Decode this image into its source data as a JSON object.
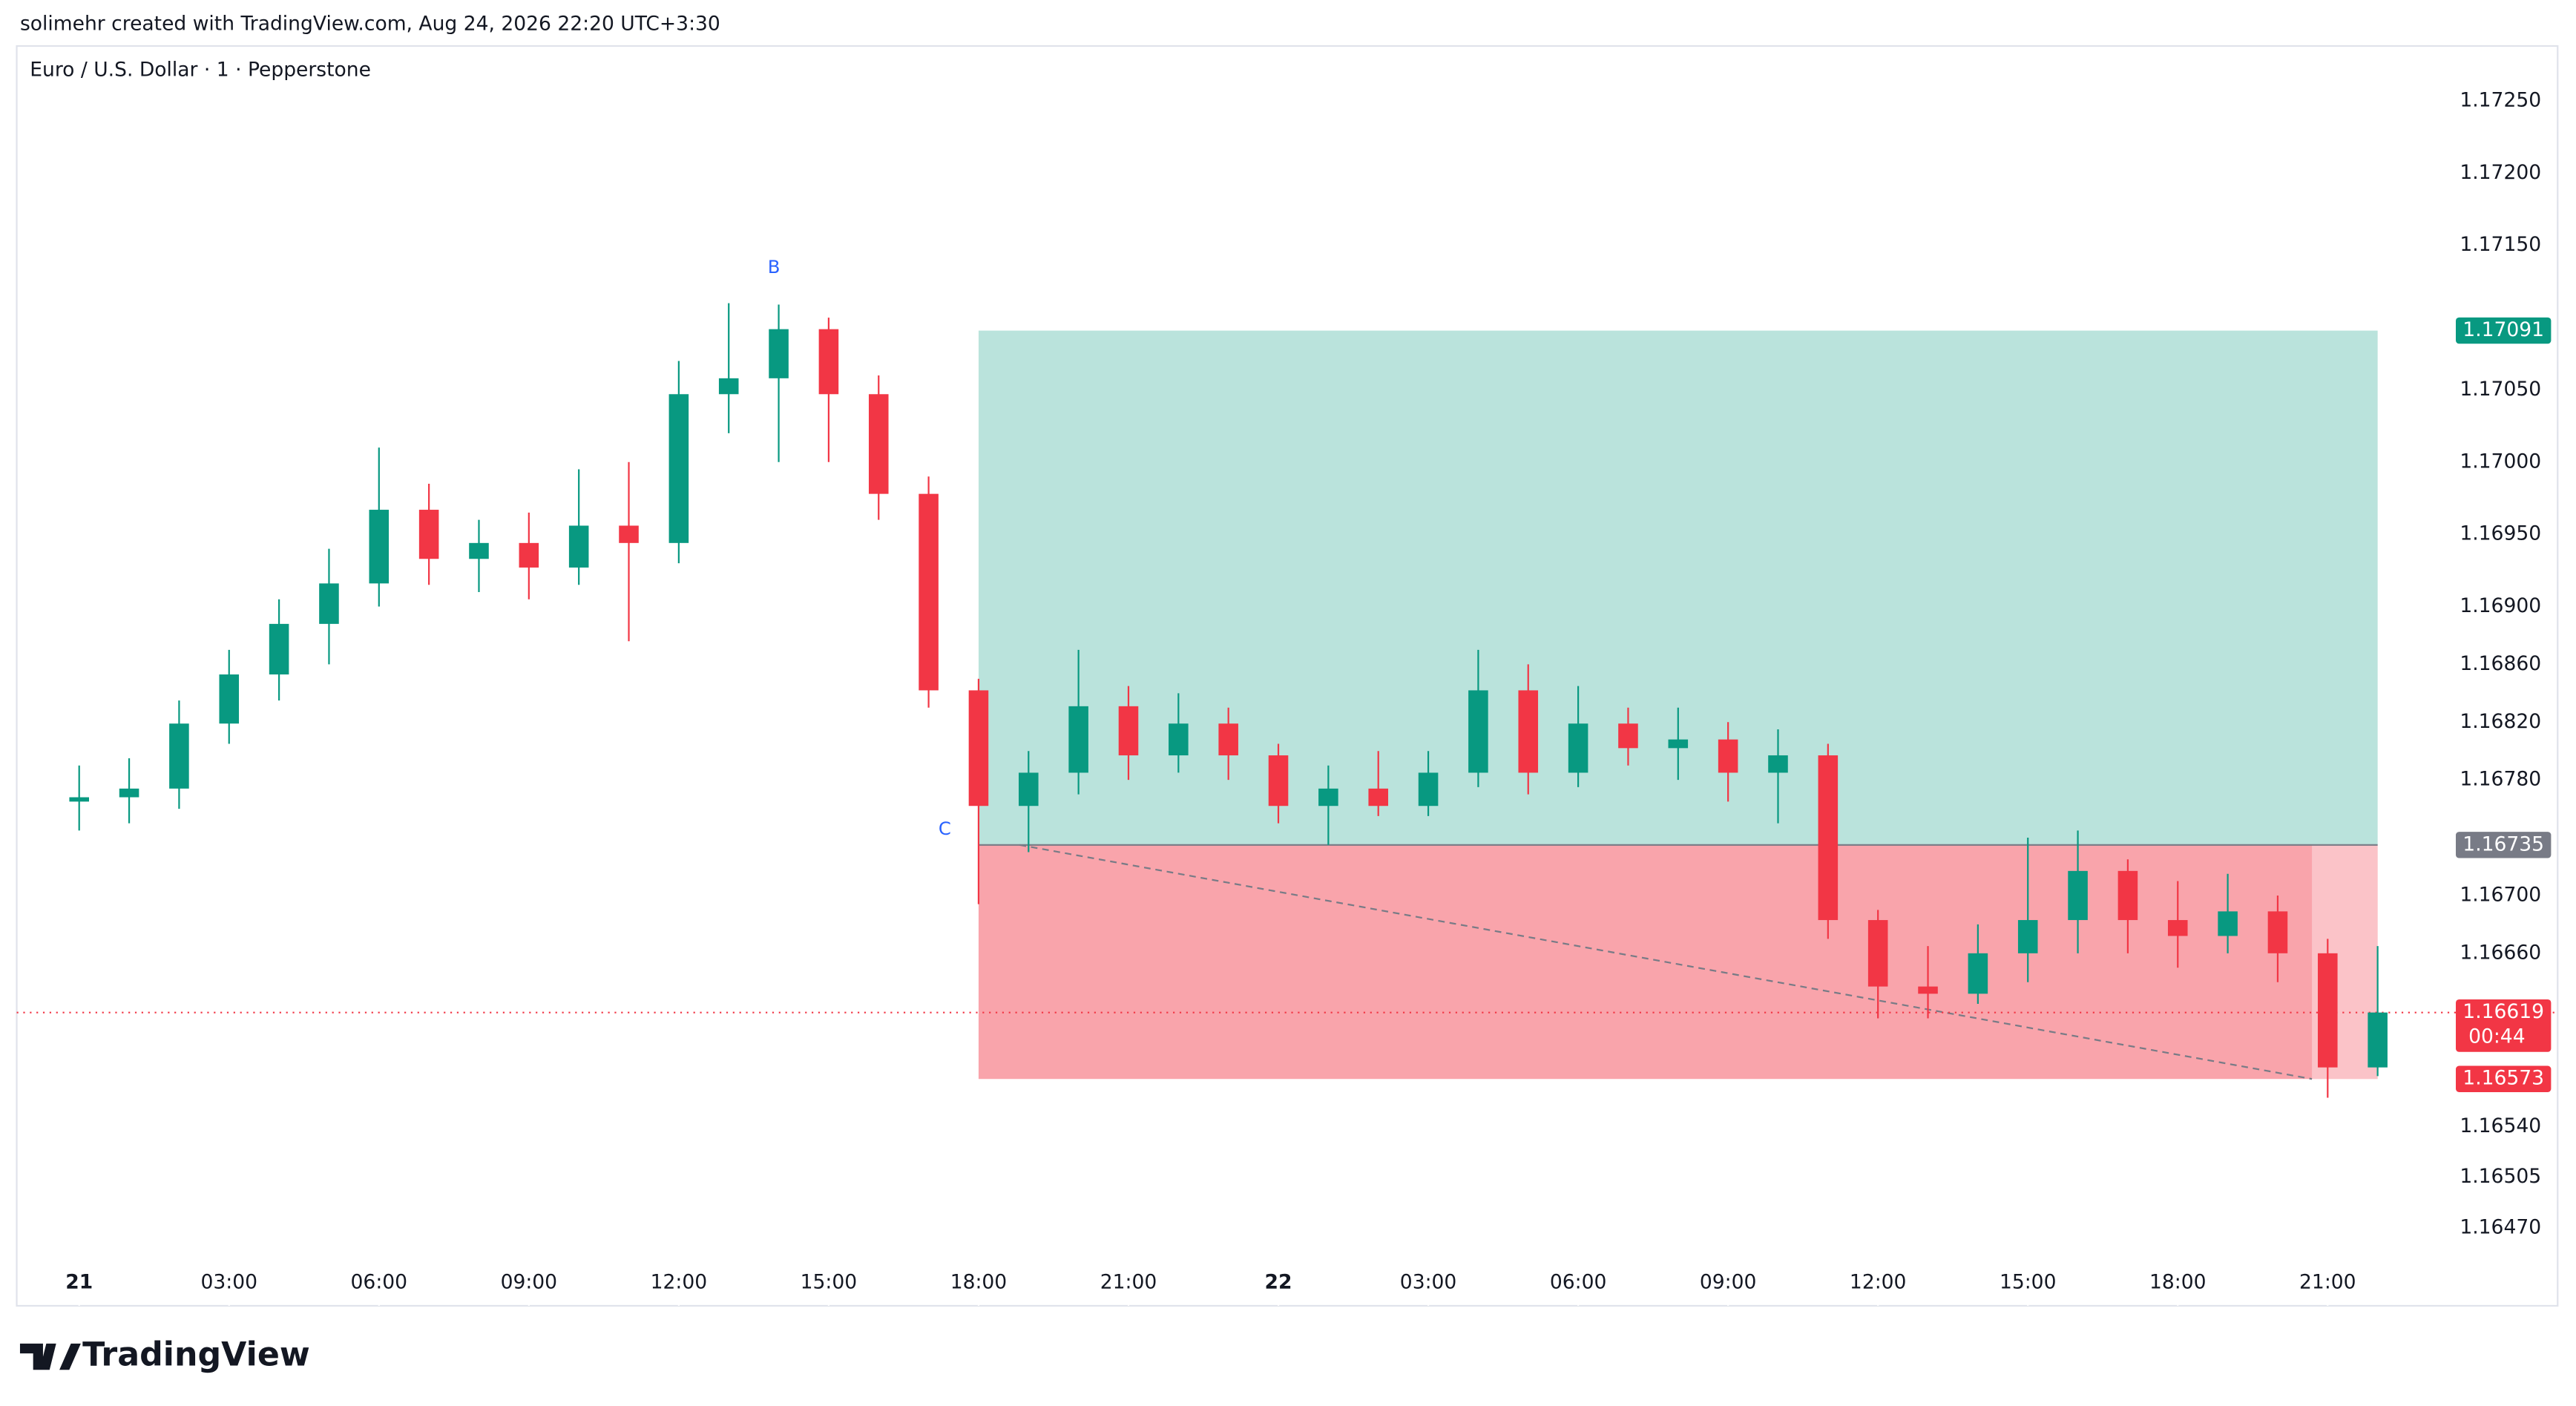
{
  "header": "solimehr created with TradingView.com, Aug 24, 2026 22:20 UTC+3:30",
  "brand": "TradingView",
  "chart_data": {
    "type": "candlestick",
    "title": "Euro / U.S. Dollar · 1 · Pepperstone",
    "x": [
      0,
      1,
      2,
      3,
      4,
      5,
      6,
      7,
      8,
      9,
      10,
      11,
      12,
      13,
      14,
      15,
      16,
      17,
      18,
      19,
      20,
      21,
      22,
      23,
      24,
      25,
      26,
      27,
      28,
      29,
      30,
      31,
      32,
      33,
      34,
      35,
      36,
      37,
      38,
      39,
      40,
      41,
      42,
      43,
      44,
      45,
      46
    ],
    "open": [
      1.16765,
      1.16768,
      1.16774,
      1.16819,
      1.16853,
      1.16888,
      1.16916,
      1.16967,
      1.16933,
      1.16944,
      1.16927,
      1.16956,
      1.16944,
      1.17047,
      1.17058,
      1.17092,
      1.17047,
      1.16978,
      1.16842,
      1.16762,
      1.16785,
      1.16831,
      1.16797,
      1.16819,
      1.16797,
      1.16762,
      1.16774,
      1.16762,
      1.16785,
      1.16842,
      1.16785,
      1.16819,
      1.16802,
      1.16808,
      1.16785,
      1.16797,
      1.16683,
      1.16637,
      1.16632,
      1.1666,
      1.16683,
      1.16717,
      1.16683,
      1.16672,
      1.16689,
      1.1666,
      1.16581
    ],
    "high": [
      1.1679,
      1.16795,
      1.16835,
      1.1687,
      1.16905,
      1.1694,
      1.1701,
      1.16985,
      1.1696,
      1.16965,
      1.16995,
      1.17,
      1.1707,
      1.1711,
      1.17109,
      1.171,
      1.1706,
      1.1699,
      1.1685,
      1.168,
      1.1687,
      1.16845,
      1.1684,
      1.1683,
      1.16805,
      1.1679,
      1.168,
      1.168,
      1.1687,
      1.1686,
      1.16845,
      1.1683,
      1.1683,
      1.1682,
      1.16815,
      1.16805,
      1.1669,
      1.16665,
      1.1668,
      1.1674,
      1.16745,
      1.16725,
      1.1671,
      1.16715,
      1.167,
      1.1667,
      1.16665
    ],
    "low": [
      1.16745,
      1.1675,
      1.1676,
      1.16805,
      1.16835,
      1.1686,
      1.169,
      1.16915,
      1.1691,
      1.16905,
      1.16915,
      1.16876,
      1.1693,
      1.1702,
      1.17,
      1.17,
      1.1696,
      1.1683,
      1.16694,
      1.1673,
      1.1677,
      1.1678,
      1.16785,
      1.1678,
      1.1675,
      1.16735,
      1.16755,
      1.16755,
      1.16775,
      1.1677,
      1.16775,
      1.1679,
      1.1678,
      1.16765,
      1.1675,
      1.1667,
      1.16615,
      1.16615,
      1.16625,
      1.1664,
      1.1666,
      1.1666,
      1.1665,
      1.1666,
      1.1664,
      1.1656,
      1.16575
    ],
    "close": [
      1.16768,
      1.16774,
      1.16819,
      1.16853,
      1.16888,
      1.16916,
      1.16967,
      1.16933,
      1.16944,
      1.16927,
      1.16956,
      1.16944,
      1.17047,
      1.17058,
      1.17092,
      1.17047,
      1.16978,
      1.16842,
      1.16762,
      1.16785,
      1.16831,
      1.16797,
      1.16819,
      1.16797,
      1.16762,
      1.16774,
      1.16762,
      1.16785,
      1.16842,
      1.16785,
      1.16819,
      1.16802,
      1.16808,
      1.16785,
      1.16797,
      1.16683,
      1.16637,
      1.16632,
      1.1666,
      1.16683,
      1.16717,
      1.16683,
      1.16672,
      1.16689,
      1.1666,
      1.16581,
      1.16619
    ],
    "up_color": "#089981",
    "down_color": "#f23645",
    "xlim": [
      -1.25,
      47.4
    ],
    "xticks": [
      {
        "value": 0,
        "label": "21"
      },
      {
        "value": 3,
        "label": "03:00"
      },
      {
        "value": 6,
        "label": "06:00"
      },
      {
        "value": 9,
        "label": "09:00"
      },
      {
        "value": 12,
        "label": "12:00"
      },
      {
        "value": 15,
        "label": "15:00"
      },
      {
        "value": 18,
        "label": "18:00"
      },
      {
        "value": 21,
        "label": "21:00"
      },
      {
        "value": 24,
        "label": "22"
      },
      {
        "value": 27,
        "label": "03:00"
      },
      {
        "value": 30,
        "label": "06:00"
      },
      {
        "value": 33,
        "label": "09:00"
      },
      {
        "value": 36,
        "label": "12:00"
      },
      {
        "value": 39,
        "label": "15:00"
      },
      {
        "value": 42,
        "label": "18:00"
      },
      {
        "value": 45,
        "label": "21:00"
      }
    ],
    "ylim": [
      1.16416,
      1.17288
    ],
    "yticks": [
      {
        "value": 1.1725,
        "label": "1.17250"
      },
      {
        "value": 1.172,
        "label": "1.17200"
      },
      {
        "value": 1.1715,
        "label": "1.17150"
      },
      {
        "value": 1.1705,
        "label": "1.17050"
      },
      {
        "value": 1.17,
        "label": "1.17000"
      },
      {
        "value": 1.1695,
        "label": "1.16950"
      },
      {
        "value": 1.169,
        "label": "1.16900"
      },
      {
        "value": 1.1686,
        "label": "1.16860"
      },
      {
        "value": 1.1682,
        "label": "1.16820"
      },
      {
        "value": 1.1678,
        "label": "1.16780"
      },
      {
        "value": 1.167,
        "label": "1.16700"
      },
      {
        "value": 1.1666,
        "label": "1.16660"
      },
      {
        "value": 1.1654,
        "label": "1.16540"
      },
      1.16505,
      {
        "value": 1.1647,
        "label": "1.16470"
      }
    ],
    "annotations": [
      "B",
      "C"
    ],
    "position": {
      "entry": 1.16735,
      "target": 1.17091,
      "stop": 1.16573,
      "x_start": 18,
      "x_end": 46,
      "target_color": "#089981",
      "entry_color": "#787b86",
      "stop_color": "#f23645"
    },
    "last_price": {
      "value": 1.16619,
      "countdown": "00:44",
      "color": "#f23645"
    }
  }
}
